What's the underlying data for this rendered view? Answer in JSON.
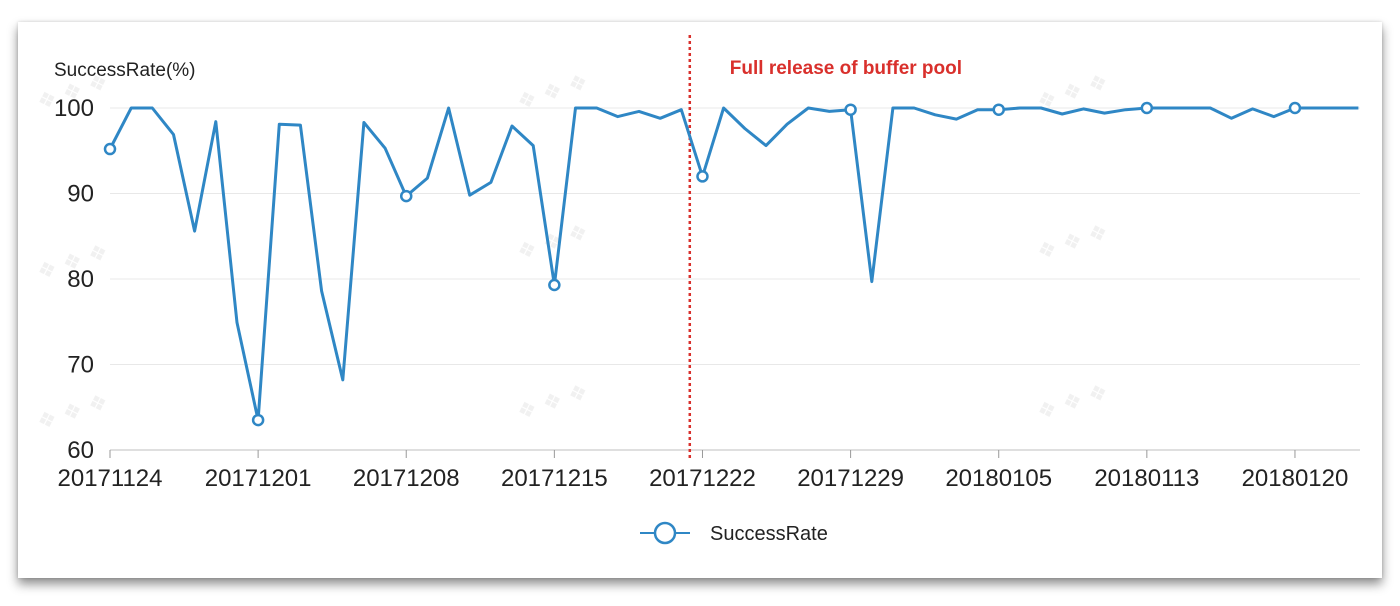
{
  "chart_data": {
    "type": "line",
    "ylabel": "SuccessRate(%)",
    "ylim": [
      60,
      100
    ],
    "yticks": [
      "60",
      "70",
      "80",
      "90",
      "100"
    ],
    "x_tick_labels": [
      "20171124",
      "20171201",
      "20171208",
      "20171215",
      "20171222",
      "20171229",
      "20180105",
      "20180113",
      "20180120"
    ],
    "x_tick_positions": [
      0,
      7,
      14,
      21,
      28,
      35,
      42,
      49,
      56
    ],
    "grid": "horizontal",
    "legend_position": "bottom-center",
    "annotation": {
      "text": "Full release of buffer pool",
      "x": 27.4
    },
    "series": [
      {
        "name": "SuccessRate",
        "color": "#2f87c5",
        "values": [
          95.2,
          100,
          100,
          96.9,
          85.6,
          98.4,
          74.9,
          63.5,
          98.1,
          98.0,
          78.6,
          68.2,
          98.3,
          95.3,
          89.7,
          91.8,
          100,
          89.8,
          91.3,
          97.9,
          95.6,
          79.3,
          100,
          100,
          99.0,
          99.6,
          98.8,
          99.8,
          92.0,
          100,
          97.6,
          95.6,
          98.1,
          100,
          99.6,
          99.8,
          79.7,
          100,
          100,
          99.2,
          98.7,
          99.8,
          99.8,
          100,
          100,
          99.3,
          99.9,
          99.4,
          99.8,
          100,
          100,
          100,
          100,
          98.8,
          99.9,
          99.0,
          100,
          100,
          100,
          100
        ],
        "markers_at": [
          0,
          7,
          14,
          21,
          28,
          35,
          42,
          49,
          56
        ]
      }
    ]
  }
}
